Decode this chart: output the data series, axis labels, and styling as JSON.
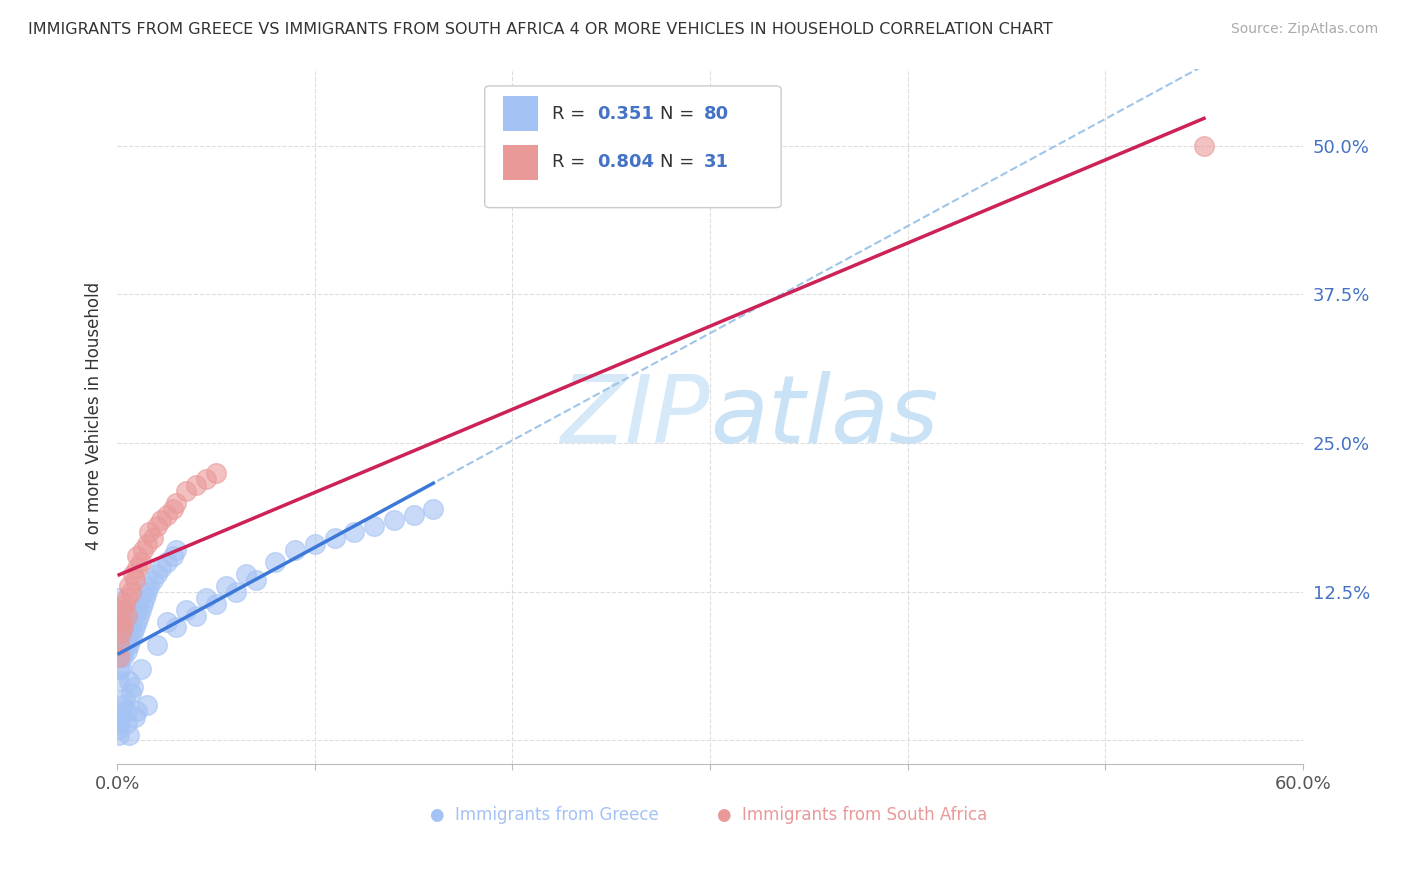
{
  "title": "IMMIGRANTS FROM GREECE VS IMMIGRANTS FROM SOUTH AFRICA 4 OR MORE VEHICLES IN HOUSEHOLD CORRELATION CHART",
  "source": "Source: ZipAtlas.com",
  "ylabel": "4 or more Vehicles in Household",
  "xlim": [
    0.0,
    0.6
  ],
  "ylim": [
    -0.02,
    0.565
  ],
  "xticks": [
    0.0,
    0.1,
    0.2,
    0.3,
    0.4,
    0.5,
    0.6
  ],
  "xticklabels": [
    "0.0%",
    "",
    "",
    "",
    "",
    "",
    "60.0%"
  ],
  "yticks": [
    0.0,
    0.125,
    0.25,
    0.375,
    0.5
  ],
  "yticklabels": [
    "",
    "12.5%",
    "25.0%",
    "37.5%",
    "50.0%"
  ],
  "greece_color": "#a4c2f4",
  "southafrica_color": "#ea9999",
  "line_greece_color": "#3c78d8",
  "line_southafrica_color": "#cc2255",
  "dashed_line_color": "#9fc5e8",
  "watermark_color": "#d6e9f8",
  "greece_x": [
    0.001,
    0.001,
    0.001,
    0.001,
    0.001,
    0.001,
    0.001,
    0.001,
    0.002,
    0.002,
    0.002,
    0.002,
    0.002,
    0.002,
    0.003,
    0.003,
    0.003,
    0.003,
    0.004,
    0.004,
    0.004,
    0.005,
    0.005,
    0.005,
    0.006,
    0.006,
    0.007,
    0.007,
    0.008,
    0.009,
    0.01,
    0.01,
    0.011,
    0.012,
    0.013,
    0.014,
    0.015,
    0.016,
    0.018,
    0.02,
    0.022,
    0.025,
    0.028,
    0.03,
    0.001,
    0.001,
    0.001,
    0.002,
    0.002,
    0.003,
    0.004,
    0.005,
    0.005,
    0.006,
    0.006,
    0.007,
    0.008,
    0.009,
    0.01,
    0.012,
    0.015,
    0.02,
    0.025,
    0.03,
    0.035,
    0.04,
    0.045,
    0.05,
    0.055,
    0.06,
    0.065,
    0.07,
    0.08,
    0.09,
    0.1,
    0.11,
    0.12,
    0.13,
    0.14,
    0.15,
    0.16
  ],
  "greece_y": [
    0.05,
    0.06,
    0.07,
    0.08,
    0.09,
    0.1,
    0.11,
    0.12,
    0.06,
    0.07,
    0.08,
    0.09,
    0.1,
    0.11,
    0.07,
    0.08,
    0.09,
    0.1,
    0.08,
    0.09,
    0.1,
    0.075,
    0.085,
    0.095,
    0.08,
    0.09,
    0.085,
    0.095,
    0.09,
    0.095,
    0.1,
    0.11,
    0.105,
    0.11,
    0.115,
    0.12,
    0.125,
    0.13,
    0.135,
    0.14,
    0.145,
    0.15,
    0.155,
    0.16,
    0.005,
    0.01,
    0.015,
    0.02,
    0.025,
    0.03,
    0.035,
    0.015,
    0.025,
    0.005,
    0.05,
    0.04,
    0.045,
    0.02,
    0.025,
    0.06,
    0.03,
    0.08,
    0.1,
    0.095,
    0.11,
    0.105,
    0.12,
    0.115,
    0.13,
    0.125,
    0.14,
    0.135,
    0.15,
    0.16,
    0.165,
    0.17,
    0.175,
    0.18,
    0.185,
    0.19,
    0.195
  ],
  "southafrica_x": [
    0.001,
    0.001,
    0.002,
    0.002,
    0.003,
    0.003,
    0.004,
    0.005,
    0.005,
    0.006,
    0.007,
    0.008,
    0.009,
    0.01,
    0.01,
    0.012,
    0.013,
    0.015,
    0.016,
    0.018,
    0.02,
    0.022,
    0.025,
    0.028,
    0.03,
    0.035,
    0.04,
    0.045,
    0.05,
    0.55
  ],
  "southafrica_y": [
    0.07,
    0.08,
    0.09,
    0.1,
    0.095,
    0.11,
    0.115,
    0.105,
    0.12,
    0.13,
    0.125,
    0.14,
    0.135,
    0.145,
    0.155,
    0.15,
    0.16,
    0.165,
    0.175,
    0.17,
    0.18,
    0.185,
    0.19,
    0.195,
    0.2,
    0.21,
    0.215,
    0.22,
    0.225,
    0.5
  ],
  "greece_line_x": [
    0.001,
    0.16
  ],
  "southafrica_line_x": [
    0.0,
    0.55
  ],
  "dashed_line_x": [
    0.0,
    0.6
  ]
}
